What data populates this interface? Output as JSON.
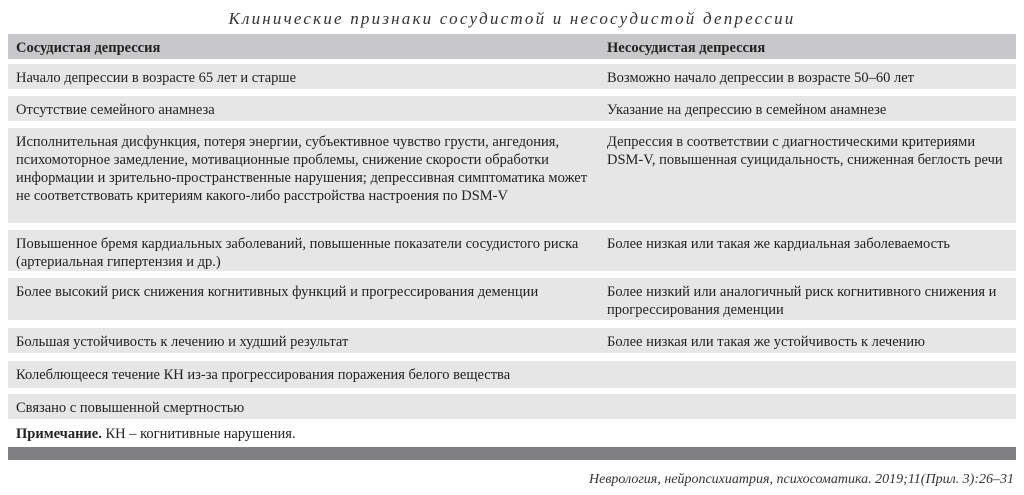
{
  "title": "Клинические признаки сосудистой и несосудистой депрессии",
  "headers": [
    "Сосудистая депрессия",
    "Несосудистая депрессия"
  ],
  "rows": [
    [
      "Начало депрессии в возрасте 65 лет и старше",
      "Возможно начало депрессии в возрасте 50–60 лет"
    ],
    [
      "Отсутствие семейного анамнеза",
      "Указание на депрессию в семейном анамнезе"
    ],
    [
      "Исполнительная дисфункция, потеря энергии, субъективное чувство грусти, ангедония, психомоторное замедление, мотивационные проблемы, снижение скорости обработки информации и зрительно-пространственные нарушения; депрессивная симптоматика может не соответствовать критериям какого-либо расстройства настроения по DSM-V",
      "Депрессия в соответствии с диагностическими критериями DSM-V, повышенная суицидальность, сниженная беглость речи"
    ],
    [
      "Повышенное бремя кардиальных заболеваний, повышенные показатели сосудистого риска (артериальная гипертензия и др.)",
      "Более низкая или такая же кардиальная заболеваемость"
    ],
    [
      "Более высокий риск снижения когнитивных функций и прогрессирования деменции",
      "Более низкий или аналогичный риск когнитивного снижения и прогрессирования деменции"
    ],
    [
      "Большая устойчивость к лечению и худший результат",
      "Более низкая или такая же устойчивость к лечению"
    ],
    [
      "Колеблющееся течение КН из-за прогрессирования поражения белого вещества",
      ""
    ],
    [
      "Связано с повышенной смертностью",
      ""
    ]
  ],
  "note": {
    "label": "Примечание.",
    "text": " КН – когнитивные нарушения."
  },
  "footer": "Неврология, нейропсихиатрия, психосоматика. 2019;11(Прил. 3):26–31"
}
